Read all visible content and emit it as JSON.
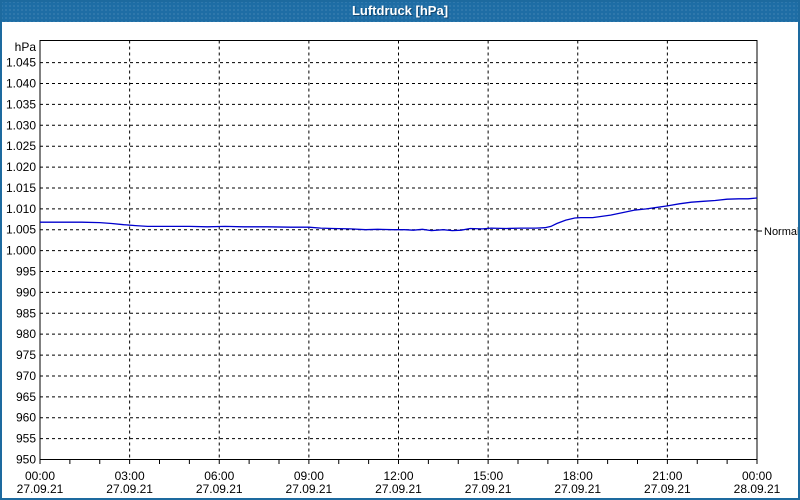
{
  "window": {
    "title": "Luftdruck [hPa]"
  },
  "colors": {
    "titlebar": "#1e6da5",
    "window_border": "#1d6a9f",
    "plot_border": "#000000",
    "gridline": "#000000",
    "series_line": "#0000cd",
    "label_text": "#000000",
    "background": "#ffffff"
  },
  "chart_data": {
    "type": "line",
    "title": "Luftdruck [hPa]",
    "ylabel": "hPa",
    "xlabel": "",
    "grid": "dashed",
    "legend_position": "none",
    "ylim": [
      950,
      1050.3
    ],
    "xlim": [
      0,
      24
    ],
    "y_ticks": [
      {
        "v": 1045,
        "label": "1.045"
      },
      {
        "v": 1040,
        "label": "1.040"
      },
      {
        "v": 1035,
        "label": "1.035"
      },
      {
        "v": 1030,
        "label": "1.030"
      },
      {
        "v": 1025,
        "label": "1.025"
      },
      {
        "v": 1020,
        "label": "1.020"
      },
      {
        "v": 1015,
        "label": "1.015"
      },
      {
        "v": 1010,
        "label": "1.010"
      },
      {
        "v": 1005,
        "label": "1.005"
      },
      {
        "v": 1000,
        "label": "1.000"
      },
      {
        "v": 995,
        "label": "995"
      },
      {
        "v": 990,
        "label": "990"
      },
      {
        "v": 985,
        "label": "985"
      },
      {
        "v": 980,
        "label": "980"
      },
      {
        "v": 975,
        "label": "975"
      },
      {
        "v": 970,
        "label": "970"
      },
      {
        "v": 965,
        "label": "965"
      },
      {
        "v": 960,
        "label": "960"
      },
      {
        "v": 955,
        "label": "955"
      },
      {
        "v": 950,
        "label": "950"
      }
    ],
    "x_ticks": [
      {
        "h": 0,
        "time": "00:00",
        "date": "27.09.21"
      },
      {
        "h": 3,
        "time": "03:00",
        "date": "27.09.21"
      },
      {
        "h": 6,
        "time": "06:00",
        "date": "27.09.21"
      },
      {
        "h": 9,
        "time": "09:00",
        "date": "27.09.21"
      },
      {
        "h": 12,
        "time": "12:00",
        "date": "27.09.21"
      },
      {
        "h": 15,
        "time": "15:00",
        "date": "27.09.21"
      },
      {
        "h": 18,
        "time": "18:00",
        "date": "27.09.21"
      },
      {
        "h": 21,
        "time": "21:00",
        "date": "27.09.21"
      },
      {
        "h": 24,
        "time": "00:00",
        "date": "28.09.21"
      }
    ],
    "minor_x_tick_every_hours": 1,
    "normal_marker": {
      "label": "Normal",
      "value": 1004.7
    },
    "series": [
      {
        "name": "Luftdruck",
        "unit": "hPa",
        "color": "#0000cd",
        "points": [
          [
            0.0,
            1006.8
          ],
          [
            0.7,
            1006.8
          ],
          [
            1.4,
            1006.8
          ],
          [
            2.0,
            1006.7
          ],
          [
            2.4,
            1006.5
          ],
          [
            2.8,
            1006.2
          ],
          [
            3.2,
            1006.0
          ],
          [
            3.6,
            1005.8
          ],
          [
            4.2,
            1005.8
          ],
          [
            5.0,
            1005.8
          ],
          [
            5.6,
            1005.7
          ],
          [
            6.2,
            1005.8
          ],
          [
            6.8,
            1005.7
          ],
          [
            7.6,
            1005.7
          ],
          [
            8.4,
            1005.6
          ],
          [
            9.0,
            1005.6
          ],
          [
            9.4,
            1005.4
          ],
          [
            9.8,
            1005.3
          ],
          [
            10.4,
            1005.2
          ],
          [
            10.9,
            1005.0
          ],
          [
            11.3,
            1005.1
          ],
          [
            11.8,
            1005.0
          ],
          [
            12.2,
            1005.0
          ],
          [
            12.5,
            1004.9
          ],
          [
            12.8,
            1005.1
          ],
          [
            13.1,
            1004.8
          ],
          [
            13.5,
            1005.0
          ],
          [
            13.8,
            1004.8
          ],
          [
            14.1,
            1004.9
          ],
          [
            14.4,
            1005.3
          ],
          [
            14.8,
            1005.2
          ],
          [
            15.1,
            1005.4
          ],
          [
            15.6,
            1005.3
          ],
          [
            16.1,
            1005.4
          ],
          [
            16.6,
            1005.4
          ],
          [
            16.9,
            1005.5
          ],
          [
            17.1,
            1005.8
          ],
          [
            17.3,
            1006.5
          ],
          [
            17.6,
            1007.3
          ],
          [
            17.9,
            1007.8
          ],
          [
            18.1,
            1007.9
          ],
          [
            18.5,
            1007.9
          ],
          [
            18.8,
            1008.2
          ],
          [
            19.1,
            1008.5
          ],
          [
            19.5,
            1009.1
          ],
          [
            19.9,
            1009.7
          ],
          [
            20.3,
            1010.0
          ],
          [
            20.7,
            1010.4
          ],
          [
            21.0,
            1010.7
          ],
          [
            21.4,
            1011.2
          ],
          [
            21.8,
            1011.6
          ],
          [
            22.2,
            1011.8
          ],
          [
            22.6,
            1012.0
          ],
          [
            23.0,
            1012.3
          ],
          [
            23.4,
            1012.4
          ],
          [
            23.7,
            1012.4
          ],
          [
            24.0,
            1012.6
          ]
        ]
      }
    ]
  }
}
